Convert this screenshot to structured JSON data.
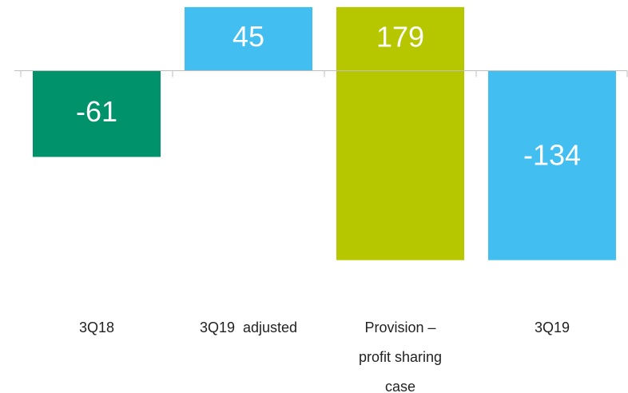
{
  "chart_data": {
    "type": "waterfall",
    "categories": [
      "3Q18",
      "3Q19  adjusted",
      "Provision – profit sharing case",
      "3Q19"
    ],
    "values": [
      -61,
      45,
      -179,
      -134
    ],
    "value_labels": [
      "-61",
      "45",
      "179",
      "-134"
    ],
    "measure": [
      "absolute",
      "absolute",
      "relative",
      "absolute"
    ],
    "colors": [
      "#00926a",
      "#42bff0",
      "#b6c700",
      "#42bff0"
    ],
    "ylim": [
      -150,
      50
    ]
  }
}
